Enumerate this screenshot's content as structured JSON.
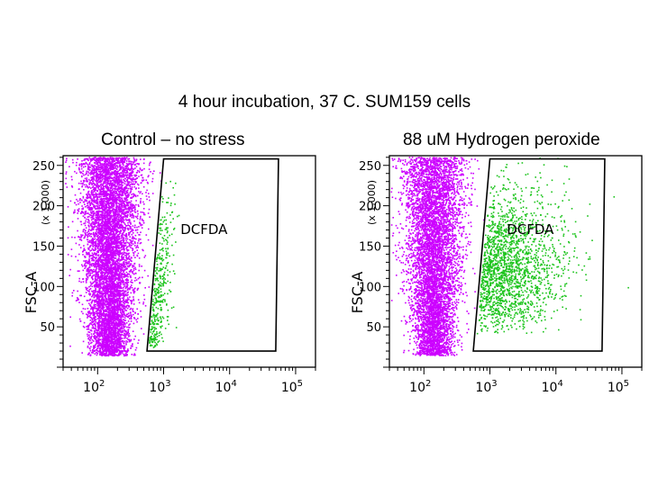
{
  "title": "4 hour incubation, 37 C. SUM159 cells",
  "colors": {
    "population": "#cc00ff",
    "gated": "#1dc41d",
    "gate_line": "#000000"
  },
  "chart_data": [
    {
      "type": "scatter",
      "title": "Control – no stress",
      "ylabel": "FSC-A",
      "ylabel_unit": "(x 1,000)",
      "xscale": "log",
      "xlim": [
        30,
        200000
      ],
      "ylim": [
        0,
        262
      ],
      "yticks": [
        "50",
        "100",
        "150",
        "200",
        "250"
      ],
      "xticks": [
        "10^2",
        "10^3",
        "10^4",
        "10^5"
      ],
      "gate": {
        "label": "DCFDA",
        "vertices": [
          [
            560,
            20
          ],
          [
            1000,
            258
          ],
          [
            55000,
            258
          ],
          [
            50000,
            20
          ]
        ]
      },
      "series": [
        {
          "name": "ungated",
          "color": "#cc00ff",
          "center_x": 150,
          "spread_log": 0.25,
          "count": 7000
        },
        {
          "name": "DCFDA",
          "color": "#1dc41d",
          "center_x": 1000,
          "spread_log": 0.15,
          "count": 380
        }
      ]
    },
    {
      "type": "scatter",
      "title": "88 uM Hydrogen peroxide",
      "ylabel": "FSC-A",
      "ylabel_unit": "(x 1,000)",
      "xscale": "log",
      "xlim": [
        30,
        200000
      ],
      "ylim": [
        0,
        262
      ],
      "yticks": [
        "50",
        "100",
        "150",
        "200",
        "250"
      ],
      "xticks": [
        "10^2",
        "10^3",
        "10^4",
        "10^5"
      ],
      "gate": {
        "label": "DCFDA",
        "vertices": [
          [
            560,
            20
          ],
          [
            1000,
            258
          ],
          [
            55000,
            258
          ],
          [
            50000,
            20
          ]
        ]
      },
      "series": [
        {
          "name": "ungated",
          "color": "#cc00ff",
          "center_x": 140,
          "spread_log": 0.25,
          "count": 6200
        },
        {
          "name": "DCFDA",
          "color": "#1dc41d",
          "center_x": 2500,
          "spread_log": 0.35,
          "count": 1900
        }
      ]
    }
  ]
}
